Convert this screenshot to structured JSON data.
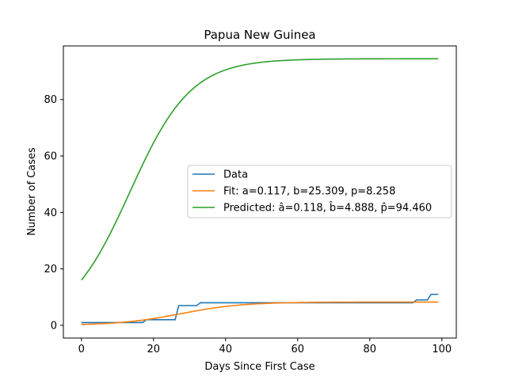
{
  "chart_data": {
    "type": "line",
    "title": "Papua New Guinea",
    "xlabel": "Days Since First Case",
    "ylabel": "Number of Cases",
    "xlim": [
      -5,
      104
    ],
    "ylim": [
      -4.5,
      99
    ],
    "xticks": [
      0,
      20,
      40,
      60,
      80,
      100
    ],
    "yticks": [
      0,
      20,
      40,
      60,
      80
    ],
    "grid": false,
    "legend_position": "center-right",
    "series": [
      {
        "name": "Data",
        "color": "#1f77b4",
        "style": "step",
        "x": [
          0,
          17,
          18,
          26,
          27,
          32,
          33,
          92,
          93,
          96,
          97,
          99
        ],
        "y": [
          1,
          1,
          2,
          2,
          7,
          7,
          8,
          8,
          9,
          9,
          11,
          11
        ]
      },
      {
        "name": "Fit: a=0.117, b=25.309, p=8.258",
        "color": "#ff7f0e",
        "style": "logistic",
        "params": {
          "a": 0.117,
          "b": 25.309,
          "p": 8.258
        }
      },
      {
        "name": "Predicted: â=0.118, b̂=4.888, p̂=94.460",
        "color": "#2ca02c",
        "style": "logistic",
        "params": {
          "a": 0.118,
          "b": 4.888,
          "p": 94.46
        }
      }
    ]
  }
}
